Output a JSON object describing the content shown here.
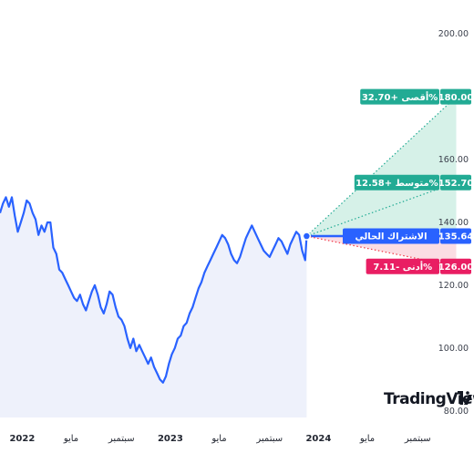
{
  "chart_data": {
    "type": "line",
    "xlim": [
      2021.85,
      2025.05
    ],
    "ylim": [
      75,
      205
    ],
    "y_ticks": [
      "200.00",
      "160.00",
      "140.00",
      "120.00",
      "100.00",
      "80.00"
    ],
    "y_tick_values": [
      200,
      160,
      140,
      120,
      100,
      80
    ],
    "x_ticks": [
      {
        "label": "2022",
        "x": 2022.0,
        "year": true
      },
      {
        "label": "مايو",
        "x": 2022.33,
        "year": false
      },
      {
        "label": "سبتمبر",
        "x": 2022.67,
        "year": false
      },
      {
        "label": "2023",
        "x": 2023.0,
        "year": true
      },
      {
        "label": "مايو",
        "x": 2023.33,
        "year": false
      },
      {
        "label": "سبتمبر",
        "x": 2023.67,
        "year": false
      },
      {
        "label": "2024",
        "x": 2024.0,
        "year": true
      },
      {
        "label": "مايو",
        "x": 2024.33,
        "year": false
      },
      {
        "label": "سبتمبر",
        "x": 2024.67,
        "year": false
      }
    ],
    "price_series": {
      "x": [
        2021.85,
        2021.87,
        2021.89,
        2021.91,
        2021.93,
        2021.95,
        2021.97,
        2021.99,
        2022.01,
        2022.03,
        2022.05,
        2022.07,
        2022.09,
        2022.11,
        2022.13,
        2022.15,
        2022.17,
        2022.19,
        2022.21,
        2022.23,
        2022.25,
        2022.27,
        2022.29,
        2022.31,
        2022.33,
        2022.35,
        2022.37,
        2022.39,
        2022.41,
        2022.43,
        2022.45,
        2022.47,
        2022.49,
        2022.51,
        2022.53,
        2022.55,
        2022.57,
        2022.59,
        2022.61,
        2022.63,
        2022.65,
        2022.67,
        2022.69,
        2022.71,
        2022.73,
        2022.75,
        2022.77,
        2022.79,
        2022.81,
        2022.83,
        2022.85,
        2022.87,
        2022.89,
        2022.91,
        2022.93,
        2022.95,
        2022.97,
        2022.99,
        2023.01,
        2023.03,
        2023.05,
        2023.07,
        2023.09,
        2023.11,
        2023.13,
        2023.15,
        2023.17,
        2023.19,
        2023.21,
        2023.23,
        2023.25,
        2023.27,
        2023.29,
        2023.31,
        2023.33,
        2023.35,
        2023.37,
        2023.39,
        2023.41,
        2023.43,
        2023.45,
        2023.47,
        2023.49,
        2023.51,
        2023.53,
        2023.55,
        2023.57,
        2023.59,
        2023.61,
        2023.63,
        2023.65,
        2023.67,
        2023.69,
        2023.71,
        2023.73,
        2023.75,
        2023.77,
        2023.79,
        2023.81,
        2023.83,
        2023.85,
        2023.87,
        2023.89,
        2023.91,
        2023.92
      ],
      "y": [
        143,
        146,
        148,
        145,
        148,
        142,
        137,
        140,
        143,
        147,
        146,
        143,
        141,
        136,
        139,
        137,
        140,
        140,
        132,
        130,
        125,
        124,
        122,
        120,
        118,
        116,
        115,
        117,
        114,
        112,
        115,
        118,
        120,
        117,
        113,
        111,
        114,
        118,
        117,
        113,
        110,
        109,
        107,
        103,
        100,
        103,
        99,
        101,
        99,
        97,
        95,
        97,
        94,
        92,
        90,
        89,
        91,
        95,
        98,
        100,
        103,
        104,
        107,
        108,
        111,
        113,
        116,
        119,
        121,
        124,
        126,
        128,
        130,
        132,
        134,
        136,
        135,
        133,
        130,
        128,
        127,
        129,
        132,
        135,
        137,
        139,
        137,
        135,
        133,
        131,
        130,
        129,
        131,
        133,
        135,
        134,
        132,
        130,
        133,
        135,
        137,
        136,
        131,
        128,
        135.64
      ]
    },
    "forecasts": [
      {
        "label": "أقصى +32.70%",
        "value_text": "180.00",
        "value": 180.0,
        "color": "#22ab94",
        "line_color": "#22ab94"
      },
      {
        "label": "متوسط +12.58%",
        "value_text": "152.70",
        "value": 152.7,
        "color": "#22ab94",
        "line_color": "#22ab94"
      },
      {
        "label": "الاشتراك الحالي",
        "value_text": "135.64",
        "value": 135.64,
        "color": "#2962ff",
        "line_color": "#2962ff"
      },
      {
        "label": "أدنى -7.11%",
        "value_text": "126.00",
        "value": 126.0,
        "color": "#e91e63",
        "line_color": "#f23645"
      }
    ],
    "current_value": 135.64,
    "forecast_end_x": 2024.93,
    "colors": {
      "line": "#2962ff",
      "area_fill": "#eef1fb",
      "up_fill": "#d6f1e8",
      "down_fill": "#fbdde3",
      "dotted_up": "#22ab94",
      "dotted_down": "#f23645"
    }
  },
  "branding": {
    "logo_text": "TradingView",
    "logo_mark": "TV"
  }
}
